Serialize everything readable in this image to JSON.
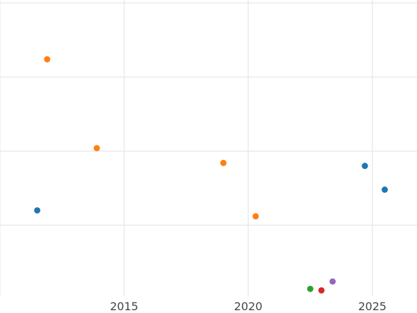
{
  "chart_data": {
    "type": "scatter",
    "title": "",
    "xlabel": "",
    "ylabel": "",
    "xlim": [
      2010.0,
      2026.8
    ],
    "ylim": [
      0,
      100
    ],
    "x_ticks": [
      2015,
      2020,
      2025
    ],
    "x_tick_labels": [
      "2015",
      "2020",
      "2025"
    ],
    "y_grid_values": [
      24,
      49,
      74,
      99
    ],
    "grid": true,
    "colors": {
      "blue": "#1f77b4",
      "orange": "#ff7f0e",
      "green": "#2ca02c",
      "red": "#d62728",
      "purple": "#9467bd",
      "grid_major": "#e6e6e6",
      "grid_minor": "#f0f0f0"
    },
    "groups": [
      {
        "color": "#1f77b4",
        "points": [
          {
            "x": 2011.5,
            "y": 29
          },
          {
            "x": 2024.7,
            "y": 44
          },
          {
            "x": 2025.5,
            "y": 36
          }
        ]
      },
      {
        "color": "#ff7f0e",
        "points": [
          {
            "x": 2011.9,
            "y": 80
          },
          {
            "x": 2013.9,
            "y": 50
          },
          {
            "x": 2019.0,
            "y": 45
          },
          {
            "x": 2020.3,
            "y": 27
          }
        ]
      },
      {
        "color": "#2ca02c",
        "points": [
          {
            "x": 2022.5,
            "y": 2.5
          }
        ]
      },
      {
        "color": "#d62728",
        "points": [
          {
            "x": 2022.95,
            "y": 2
          }
        ]
      },
      {
        "color": "#9467bd",
        "points": [
          {
            "x": 2023.4,
            "y": 5
          }
        ]
      }
    ]
  }
}
